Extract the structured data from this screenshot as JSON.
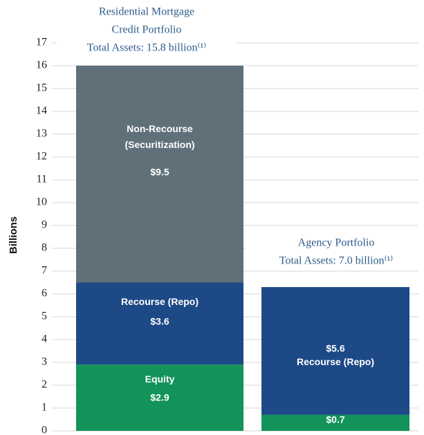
{
  "chart_data": {
    "type": "stacked_bar",
    "y_label": "Billions",
    "categories": [
      null,
      null
    ],
    "annotations": [
      {
        "lines": [
          "Residential Mortgage",
          "Credit Portfolio",
          "Total Assets: 15.8 billion⁽¹⁾"
        ]
      },
      {
        "lines": [
          "Agency Portfolio",
          "Total Assets: 7.0 billion⁽¹⁾"
        ]
      }
    ],
    "series": [
      {
        "name": "Equity",
        "color": "#12935a",
        "values": [
          2.9,
          0.7
        ],
        "value_labels": [
          "$2.9",
          "$0.7"
        ]
      },
      {
        "name": "Recourse (Repo)",
        "color": "#1d4a86",
        "values": [
          3.6,
          5.6
        ],
        "value_labels": [
          "$3.6",
          "$5.6"
        ]
      },
      {
        "name": "Non-Recourse (Securitization)",
        "color": "#5f7079",
        "values": [
          9.5,
          null
        ],
        "value_labels": [
          "$9.5",
          null
        ]
      }
    ],
    "ylim": [
      0,
      17
    ],
    "yticks": [
      0,
      1,
      2,
      3,
      4,
      5,
      6,
      7,
      8,
      9,
      10,
      11,
      12,
      13,
      14,
      15,
      16,
      17
    ],
    "grid": true
  }
}
